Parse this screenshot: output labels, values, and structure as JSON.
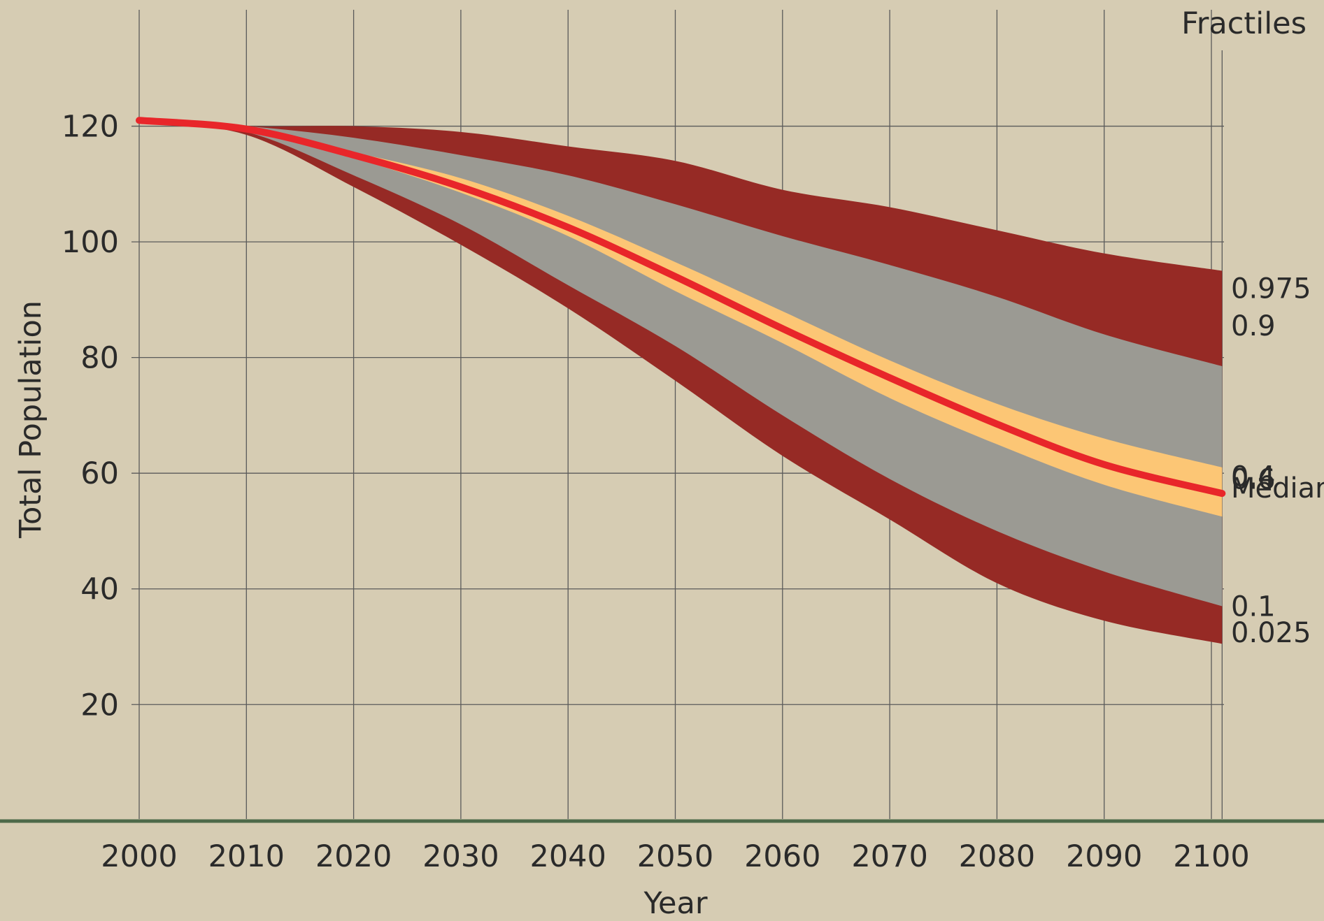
{
  "chart_data": {
    "type": "area",
    "title": "",
    "xlabel": "Year",
    "ylabel": "Total Population",
    "legend_title": "Fractiles",
    "xlim": [
      2000,
      2101
    ],
    "ylim": [
      0,
      140
    ],
    "xticks": [
      2000,
      2010,
      2020,
      2030,
      2040,
      2050,
      2060,
      2070,
      2080,
      2090,
      2100
    ],
    "yticks": [
      20,
      40,
      60,
      80,
      100,
      120
    ],
    "grid": true,
    "x": [
      2000,
      2010,
      2020,
      2030,
      2040,
      2050,
      2060,
      2070,
      2080,
      2090,
      2101
    ],
    "series": [
      {
        "name": "0.975",
        "values": [
          121,
          120,
          120,
          119,
          116.5,
          114,
          109,
          106,
          102,
          98,
          95
        ]
      },
      {
        "name": "0.9",
        "values": [
          121,
          120,
          118,
          115,
          111.5,
          106.5,
          101,
          96,
          90.5,
          84,
          78.5
        ]
      },
      {
        "name": "0.6",
        "values": [
          121,
          119.5,
          115.5,
          111,
          104.5,
          96.5,
          88,
          79.5,
          72,
          66,
          61
        ]
      },
      {
        "name": "Median",
        "values": [
          121,
          119.5,
          115,
          109.5,
          102.5,
          94,
          85,
          76.5,
          68.5,
          61.5,
          56.5
        ]
      },
      {
        "name": "0.4",
        "values": [
          121,
          119.5,
          114.5,
          108.5,
          101,
          91.5,
          82.5,
          73,
          65,
          58,
          52.5
        ]
      },
      {
        "name": "0.1",
        "values": [
          121,
          119,
          111.5,
          103,
          92.5,
          82,
          70,
          59,
          50,
          43,
          37
        ]
      },
      {
        "name": "0.025",
        "values": [
          121,
          118.5,
          109.5,
          99.5,
          88.5,
          76,
          63,
          52,
          41,
          34.5,
          30.5
        ]
      }
    ],
    "colors": {
      "background": "#d6ccb3",
      "outer_band": "#962a25",
      "inner_band": "#9b9a93",
      "core_band": "#fcc675",
      "median": "#e8262a",
      "grid": "#5a5a5a",
      "baseline": "#4e6a4a"
    }
  }
}
